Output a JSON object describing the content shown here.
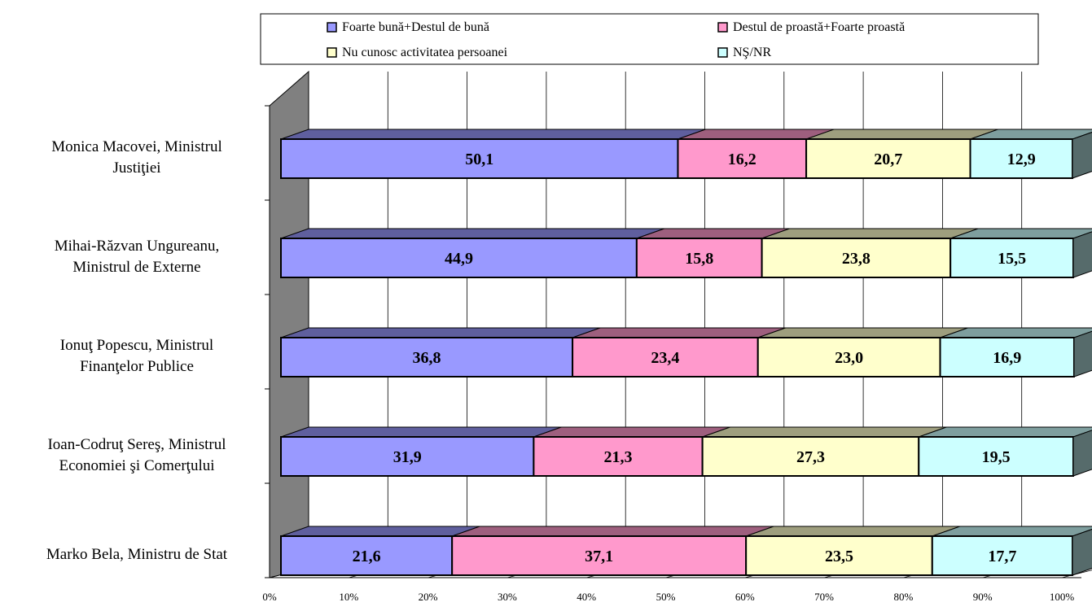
{
  "chart_data": {
    "type": "bar",
    "orientation": "horizontal",
    "stacked": true,
    "percent_stacked": true,
    "three_d": true,
    "categories": [
      [
        "Monica Macovei, Ministrul",
        "Justiţiei"
      ],
      [
        "Mihai-Răzvan Ungureanu,",
        "Ministrul de Externe"
      ],
      [
        "Ionuţ Popescu, Ministrul",
        "Finanţelor Publice"
      ],
      [
        "Ioan-Codruţ Sereş, Ministrul",
        "Economiei şi Comerţului"
      ],
      [
        "Marko Bela, Ministru de Stat"
      ]
    ],
    "series": [
      {
        "name": "Foarte bună+Destul de bună",
        "values": [
          50.1,
          44.9,
          36.8,
          31.9,
          21.6
        ],
        "labels": [
          "50,1",
          "44,9",
          "36,8",
          "31,9",
          "21,6"
        ],
        "color": "#9999ff"
      },
      {
        "name": "Destul de proastă+Foarte proastă",
        "values": [
          16.2,
          15.8,
          23.4,
          21.3,
          37.1
        ],
        "labels": [
          "16,2",
          "15,8",
          "23,4",
          "21,3",
          "37,1"
        ],
        "color": "#ff99cc"
      },
      {
        "name": "Nu cunosc activitatea persoanei",
        "values": [
          20.7,
          23.8,
          23.0,
          27.3,
          23.5
        ],
        "labels": [
          "20,7",
          "23,8",
          "23,0",
          "27,3",
          "23,5"
        ],
        "color": "#ffffcc"
      },
      {
        "name": "NŞ/NR",
        "values": [
          12.9,
          15.5,
          16.9,
          19.5,
          17.7
        ],
        "labels": [
          "12,9",
          "15,5",
          "16,9",
          "19,5",
          "17,7"
        ],
        "color": "#ccffff"
      }
    ],
    "x_ticks": [
      "0%",
      "10%",
      "20%",
      "30%",
      "40%",
      "50%",
      "60%",
      "70%",
      "80%",
      "90%",
      "100%"
    ],
    "xlim": [
      0,
      100
    ],
    "grid": true,
    "legend_position": "top",
    "wall_color": "#808080",
    "title": "",
    "xlabel": "",
    "ylabel": ""
  }
}
